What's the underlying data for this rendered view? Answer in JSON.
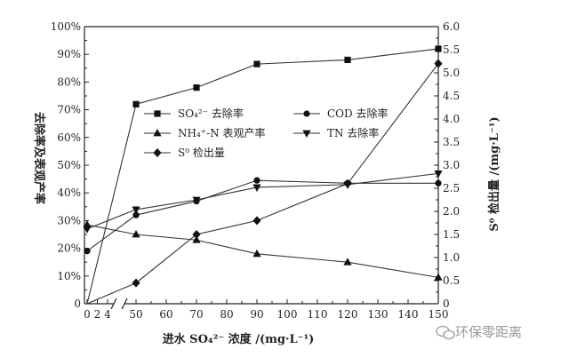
{
  "chart_data": {
    "type": "line",
    "x_axis": {
      "label": "进水 SO₄²⁻ 浓度 /(mg·L⁻¹)",
      "ticks_before_break": [
        "0",
        "2",
        "4"
      ],
      "ticks_after_break": [
        "50",
        "60",
        "70",
        "80",
        "90",
        "100",
        "110",
        "120",
        "130",
        "140",
        "150"
      ],
      "range_after_break": [
        50,
        150
      ]
    },
    "y_left": {
      "label": "去除率及表观产率",
      "ticks": [
        "0",
        "10%",
        "20%",
        "30%",
        "40%",
        "50%",
        "60%",
        "70%",
        "80%",
        "90%",
        "100%"
      ],
      "range": [
        0,
        100
      ]
    },
    "y_right": {
      "label": "S⁰ 检出量 /(mg·L⁻¹)",
      "ticks": [
        "0",
        "0.5",
        "1.0",
        "1.5",
        "2.0",
        "2.5",
        "3.0",
        "3.5",
        "4.0",
        "4.5",
        "5.0",
        "5.5",
        "6.0"
      ],
      "range": [
        0,
        6
      ]
    },
    "series": [
      {
        "name": "SO₄²⁻ 去除率",
        "marker": "square",
        "axis": "left",
        "points": [
          {
            "x": 0,
            "y": 0
          },
          {
            "x": 50,
            "y": 72
          },
          {
            "x": 70,
            "y": 78
          },
          {
            "x": 90,
            "y": 86.5
          },
          {
            "x": 120,
            "y": 88
          },
          {
            "x": 150,
            "y": 92
          }
        ]
      },
      {
        "name": "COD 去除率",
        "marker": "circle",
        "axis": "left",
        "points": [
          {
            "x": 0,
            "y": 19
          },
          {
            "x": 50,
            "y": 32
          },
          {
            "x": 70,
            "y": 37
          },
          {
            "x": 90,
            "y": 44.5
          },
          {
            "x": 120,
            "y": 43.5
          },
          {
            "x": 150,
            "y": 43.5
          }
        ]
      },
      {
        "name": "NH₄⁺-N 表观产率",
        "marker": "triangle-up",
        "axis": "left",
        "points": [
          {
            "x": 0,
            "y": 28.5
          },
          {
            "x": 50,
            "y": 25
          },
          {
            "x": 70,
            "y": 23
          },
          {
            "x": 90,
            "y": 18
          },
          {
            "x": 120,
            "y": 15
          },
          {
            "x": 150,
            "y": 9.5
          }
        ]
      },
      {
        "name": "TN 去除率",
        "marker": "triangle-down",
        "axis": "left",
        "points": [
          {
            "x": 0,
            "y": 27
          },
          {
            "x": 50,
            "y": 34
          },
          {
            "x": 70,
            "y": 37.5
          },
          {
            "x": 90,
            "y": 42
          },
          {
            "x": 120,
            "y": 43
          },
          {
            "x": 150,
            "y": 47
          }
        ]
      },
      {
        "name": "S⁰ 检出量",
        "marker": "diamond",
        "axis": "right",
        "points": [
          {
            "x": 0,
            "y": 0
          },
          {
            "x": 50,
            "y": 0.45
          },
          {
            "x": 70,
            "y": 1.5
          },
          {
            "x": 90,
            "y": 1.8
          },
          {
            "x": 120,
            "y": 2.6
          },
          {
            "x": 150,
            "y": 5.2
          }
        ]
      }
    ],
    "legend_placement": "center"
  },
  "watermark": {
    "text": "环保零距离",
    "icon": "wechat-icon"
  }
}
